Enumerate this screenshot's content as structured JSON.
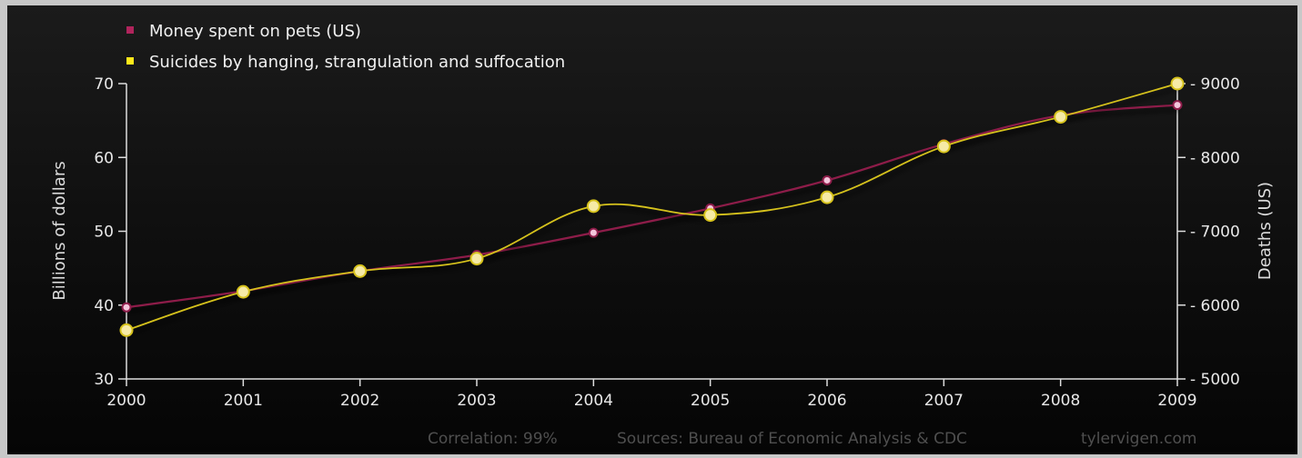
{
  "chart_data": {
    "type": "line",
    "x": [
      2000,
      2001,
      2002,
      2003,
      2004,
      2005,
      2006,
      2007,
      2008,
      2009
    ],
    "x_tick_labels": [
      "2000",
      "2001",
      "2002",
      "2003",
      "2004",
      "2005",
      "2006",
      "2007",
      "2008",
      "2009"
    ],
    "series": [
      {
        "name": "Money spent on pets (US)",
        "axis": "left",
        "color": "#8e1d4a",
        "marker_color": "#f4c6dc",
        "values": [
          39.7,
          41.9,
          44.6,
          46.8,
          49.8,
          53.1,
          56.9,
          61.8,
          65.7,
          67.1
        ]
      },
      {
        "name": "Suicides by hanging, strangulation and suffocation",
        "axis": "right",
        "color": "#d6c21c",
        "marker_color": "#f6eaa6",
        "values": [
          5660,
          6180,
          6460,
          6630,
          7340,
          7220,
          7460,
          8150,
          8550,
          9000
        ]
      }
    ],
    "y_left": {
      "label": "Billions of dollars",
      "ylim": [
        30,
        70
      ],
      "ticks": [
        "30",
        "40",
        "50",
        "60",
        "70"
      ]
    },
    "y_right": {
      "label": "Deaths (US)",
      "ylim": [
        5000,
        9000
      ],
      "ticks": [
        "5000",
        "6000",
        "7000",
        "8000",
        "9000"
      ]
    },
    "xlim": [
      2000,
      2009
    ],
    "grid": false,
    "legend": "top-left",
    "footer": {
      "correlation": "Correlation: 99%",
      "sources": "Sources: Bureau of Economic Analysis & CDC",
      "site": "tylervigen.com"
    }
  }
}
